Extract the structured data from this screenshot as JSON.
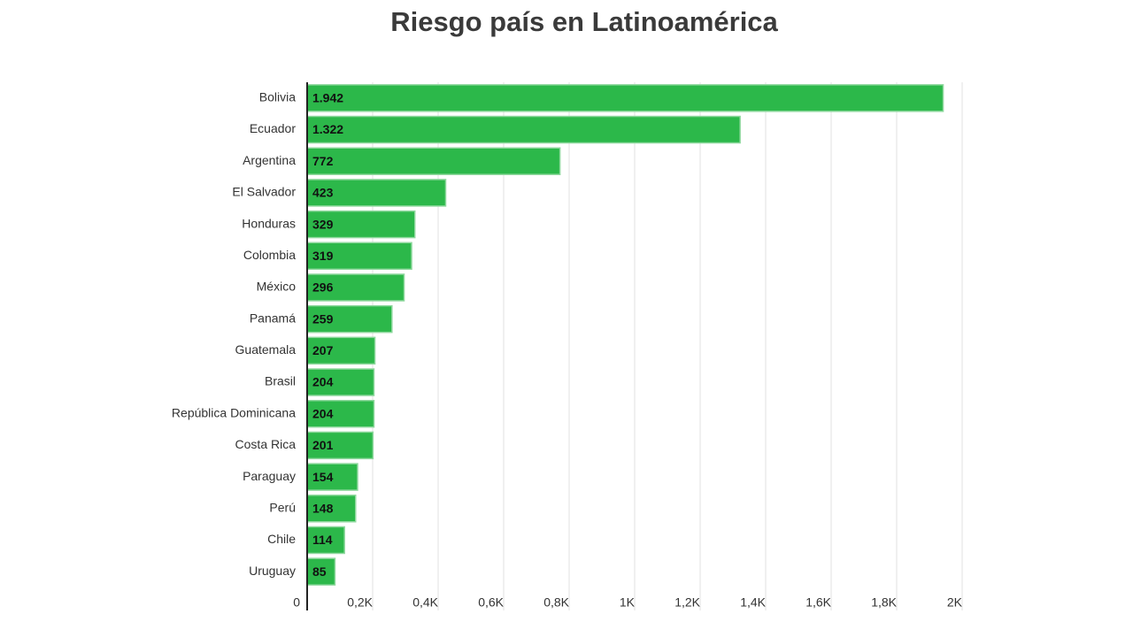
{
  "chart_data": {
    "type": "bar",
    "orientation": "horizontal",
    "title": "Riesgo país en Latinoamérica",
    "categories": [
      "Bolivia",
      "Ecuador",
      "Argentina",
      "El Salvador",
      "Honduras",
      "Colombia",
      "México",
      "Panamá",
      "Guatemala",
      "Brasil",
      "República Dominicana",
      "Costa Rica",
      "Paraguay",
      "Perú",
      "Chile",
      "Uruguay"
    ],
    "values": [
      1942,
      1322,
      772,
      423,
      329,
      319,
      296,
      259,
      207,
      204,
      204,
      201,
      154,
      148,
      114,
      85
    ],
    "value_labels": [
      "1.942",
      "1.322",
      "772",
      "423",
      "329",
      "319",
      "296",
      "259",
      "207",
      "204",
      "204",
      "201",
      "154",
      "148",
      "114",
      "85"
    ],
    "color": "#2cb84a",
    "xlim": [
      0,
      2000
    ],
    "xticks": [
      0,
      {
        "value": 200,
        "label": "0,2K"
      },
      {
        "value": 400,
        "label": "0,4K"
      },
      {
        "value": 600,
        "label": "0,6K"
      },
      {
        "value": 800,
        "label": "0,8K"
      },
      {
        "value": 1000,
        "label": "1K"
      },
      {
        "value": 1200,
        "label": "1,2K"
      },
      {
        "value": 1400,
        "label": "1,4K"
      },
      {
        "value": 1600,
        "label": "1,6K"
      },
      {
        "value": 1800,
        "label": "1,8K"
      },
      {
        "value": 2000,
        "label": "2K"
      }
    ],
    "grid": true
  }
}
